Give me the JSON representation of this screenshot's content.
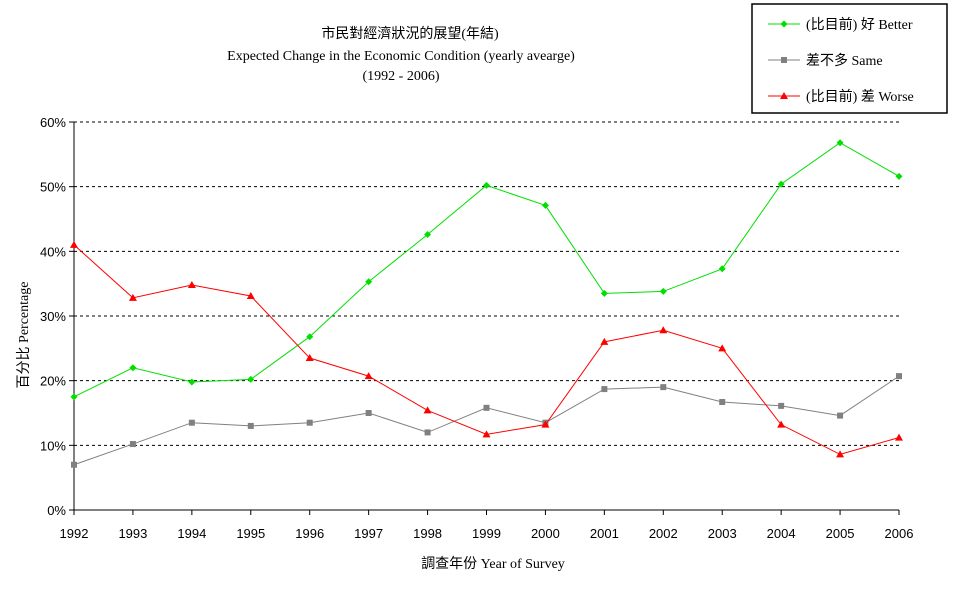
{
  "chart_data": {
    "type": "line",
    "title": "市民對經濟狀況的展望(年結)",
    "subtitle": "Expected Change in the Economic Condition (yearly avearge)",
    "subtitle2": "(1992 - 2006)",
    "xlabel": "調查年份 Year of Survey",
    "ylabel": "百分比 Percentage",
    "ylim": [
      0,
      60
    ],
    "yticks": [
      "0%",
      "10%",
      "20%",
      "30%",
      "40%",
      "50%",
      "60%"
    ],
    "grid": true,
    "legend_position": "top-right",
    "categories": [
      "1992",
      "1993",
      "1994",
      "1995",
      "1996",
      "1997",
      "1998",
      "1999",
      "2000",
      "2001",
      "2002",
      "2003",
      "2004",
      "2005",
      "2006"
    ],
    "series": [
      {
        "name": "(比目前) 好 Better",
        "color": "#00e000",
        "marker": "diamond",
        "values": [
          17.5,
          22.0,
          19.8,
          20.2,
          26.8,
          35.3,
          42.6,
          50.2,
          47.1,
          33.5,
          33.8,
          37.3,
          50.4,
          56.8,
          51.6
        ]
      },
      {
        "name": "差不多 Same",
        "color": "#808080",
        "marker": "square",
        "values": [
          7.0,
          10.2,
          13.5,
          13.0,
          13.5,
          15.0,
          12.0,
          15.8,
          13.5,
          18.7,
          19.0,
          16.7,
          16.1,
          14.6,
          20.7
        ]
      },
      {
        "name": "(比目前) 差 Worse",
        "color": "#ff0000",
        "marker": "triangle",
        "values": [
          41.0,
          32.8,
          34.8,
          33.1,
          23.5,
          20.7,
          15.4,
          11.7,
          13.2,
          26.0,
          27.8,
          25.0,
          13.2,
          8.6,
          11.2
        ]
      }
    ]
  }
}
